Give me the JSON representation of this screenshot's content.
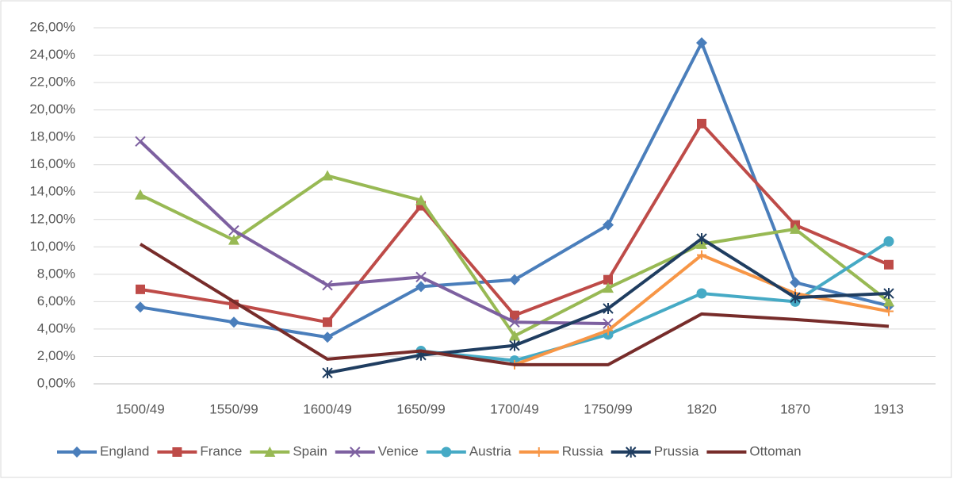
{
  "chart_data": {
    "type": "line",
    "categories": [
      "1500/49",
      "1550/99",
      "1600/49",
      "1650/99",
      "1700/49",
      "1750/99",
      "1820",
      "1870",
      "1913"
    ],
    "ylim": [
      0,
      26
    ],
    "yticks": [
      {
        "value": 0,
        "label": "0,00%"
      },
      {
        "value": 2,
        "label": "2,00%"
      },
      {
        "value": 4,
        "label": "4,00%"
      },
      {
        "value": 6,
        "label": "6,00%"
      },
      {
        "value": 8,
        "label": "8,00%"
      },
      {
        "value": 10,
        "label": "10,00%"
      },
      {
        "value": 12,
        "label": "12,00%"
      },
      {
        "value": 14,
        "label": "14,00%"
      },
      {
        "value": 16,
        "label": "16,00%"
      },
      {
        "value": 18,
        "label": "18,00%"
      },
      {
        "value": 20,
        "label": "20,00%"
      },
      {
        "value": 22,
        "label": "22,00%"
      },
      {
        "value": 24,
        "label": "24,00%"
      },
      {
        "value": 26,
        "label": "26,00%"
      }
    ],
    "grid": true,
    "legend": "bottom",
    "series": [
      {
        "name": "England",
        "color": "#4a7ebb",
        "marker": "diamond",
        "values": [
          5.6,
          4.5,
          3.4,
          7.1,
          7.6,
          11.6,
          24.9,
          7.4,
          5.7
        ]
      },
      {
        "name": "France",
        "color": "#be4b48",
        "marker": "square",
        "values": [
          6.9,
          5.8,
          4.5,
          13.0,
          5.0,
          7.6,
          19.0,
          11.6,
          8.7
        ]
      },
      {
        "name": "Spain",
        "color": "#98b954",
        "marker": "triangle",
        "values": [
          13.8,
          10.5,
          15.2,
          13.4,
          3.5,
          7.0,
          10.2,
          11.3,
          6.0
        ]
      },
      {
        "name": "Venice",
        "color": "#7d60a0",
        "marker": "x",
        "values": [
          17.7,
          11.2,
          7.2,
          7.8,
          4.5,
          4.4,
          null,
          null,
          null
        ]
      },
      {
        "name": "Austria",
        "color": "#46aac5",
        "marker": "circle",
        "values": [
          null,
          null,
          null,
          2.4,
          1.7,
          3.6,
          6.6,
          6.0,
          10.4
        ]
      },
      {
        "name": "Russia",
        "color": "#f79646",
        "marker": "plus",
        "values": [
          null,
          null,
          null,
          null,
          1.4,
          3.9,
          9.4,
          6.6,
          5.3
        ]
      },
      {
        "name": "Prussia",
        "color": "#1f3d60",
        "marker": "star",
        "values": [
          null,
          null,
          0.8,
          2.1,
          2.8,
          5.5,
          10.6,
          6.3,
          6.6
        ]
      },
      {
        "name": "Ottoman",
        "color": "#772c2a",
        "marker": "none",
        "values": [
          10.2,
          6.0,
          1.8,
          2.4,
          1.4,
          1.4,
          5.1,
          4.7,
          4.2
        ]
      }
    ]
  }
}
